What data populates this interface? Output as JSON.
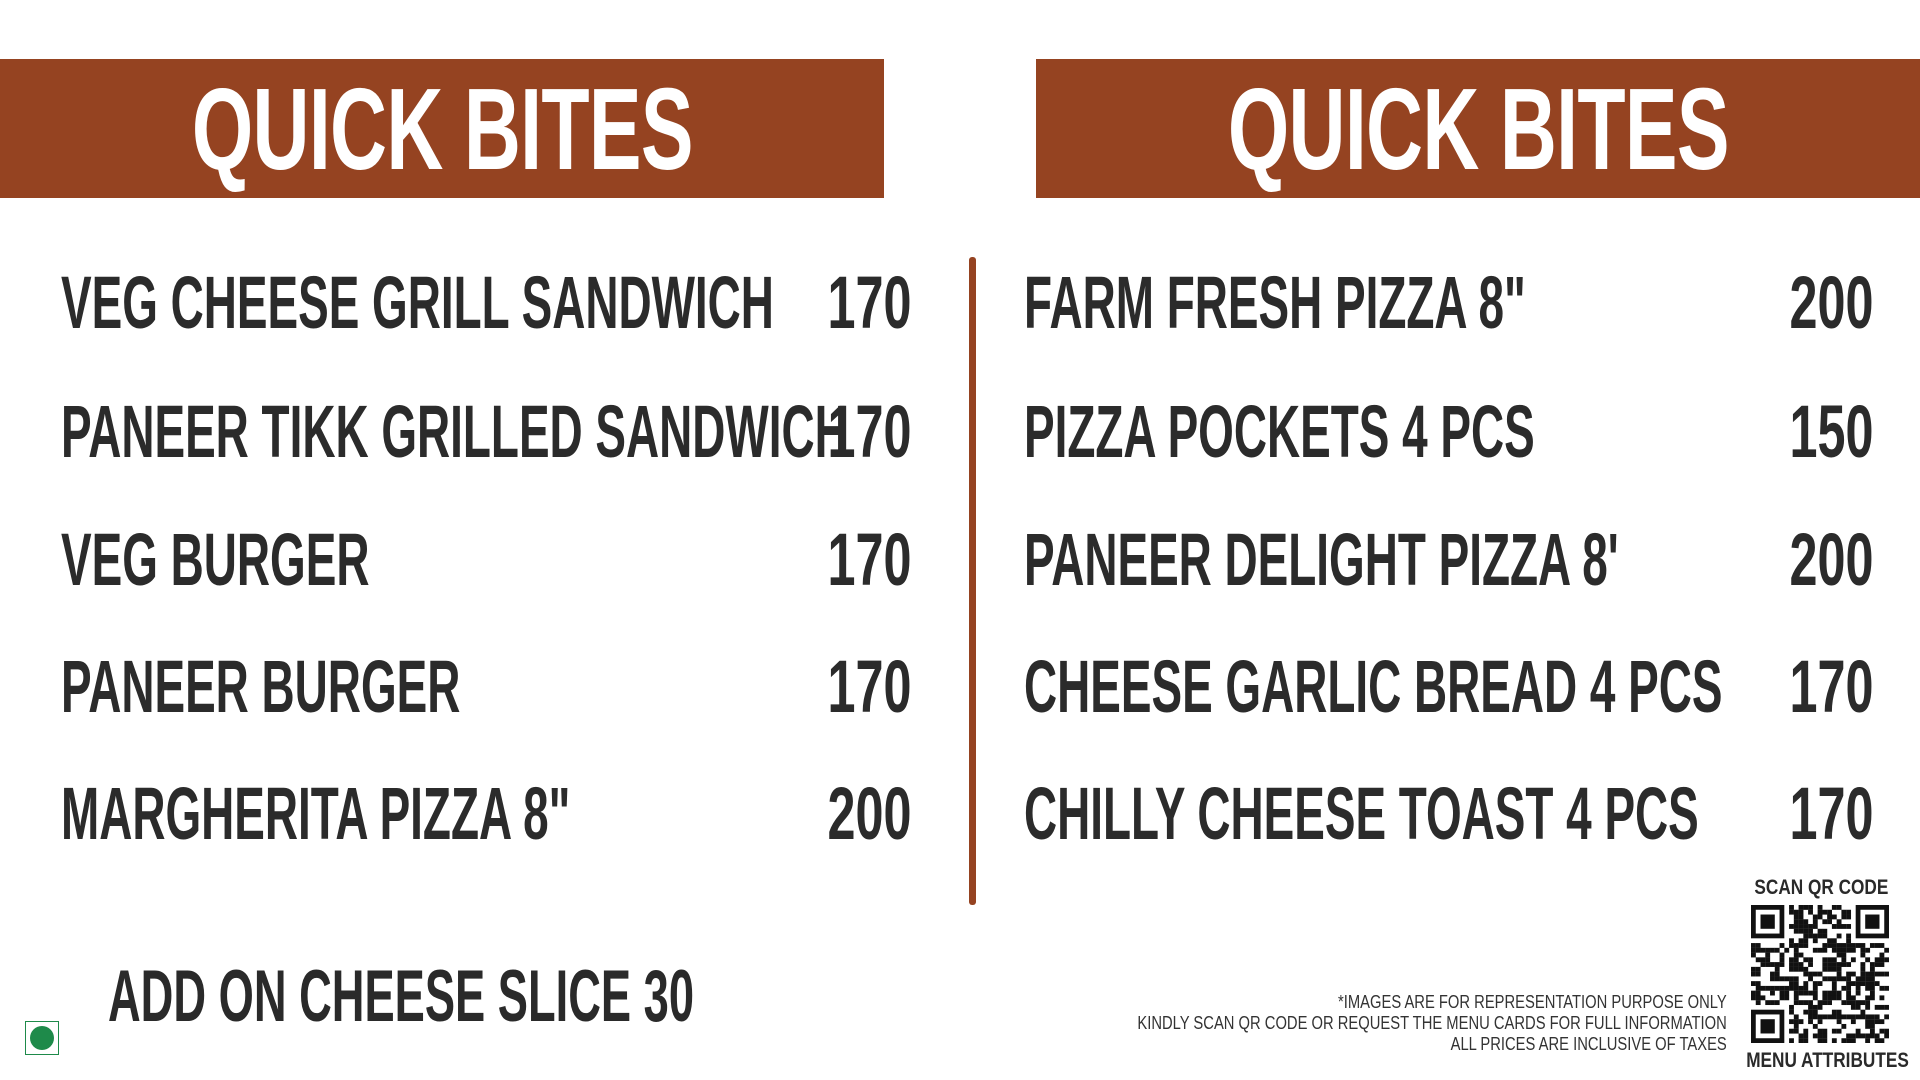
{
  "brand_color": "#954321",
  "veg_color": "#1e8a4a",
  "left": {
    "title": "QUICK BITES",
    "items": [
      {
        "name": "VEG CHEESE GRILL SANDWICH",
        "price": "170"
      },
      {
        "name": "PANEER TIKK GRILLED SANDWICH",
        "price": "170"
      },
      {
        "name": "VEG BURGER",
        "price": "170"
      },
      {
        "name": "PANEER BURGER",
        "price": "170"
      },
      {
        "name": "MARGHERITA PIZZA 8\"",
        "price": "200"
      }
    ]
  },
  "right": {
    "title": "QUICK BITES",
    "items": [
      {
        "name": "FARM FRESH PIZZA 8\"",
        "price": "200"
      },
      {
        "name": "PIZZA POCKETS 4 PCS",
        "price": "150"
      },
      {
        "name": "PANEER DELIGHT PIZZA 8'",
        "price": "200"
      },
      {
        "name": "CHEESE GARLIC BREAD 4 PCS",
        "price": "170"
      },
      {
        "name": "CHILLY CHEESE TOAST 4 PCS",
        "price": "170"
      }
    ]
  },
  "addon": "ADD ON CHEESE SLICE 30",
  "veg_icon": "veg-symbol-icon",
  "notes": [
    "*IMAGES ARE FOR REPRESENTATION PURPOSE ONLY",
    "KINDLY SCAN QR CODE OR REQUEST THE MENU CARDS FOR FULL INFORMATION",
    "ALL PRICES ARE INCLUSIVE OF TAXES"
  ],
  "qr": {
    "top_label": "SCAN QR CODE",
    "bottom_label": "MENU ATTRIBUTES"
  }
}
